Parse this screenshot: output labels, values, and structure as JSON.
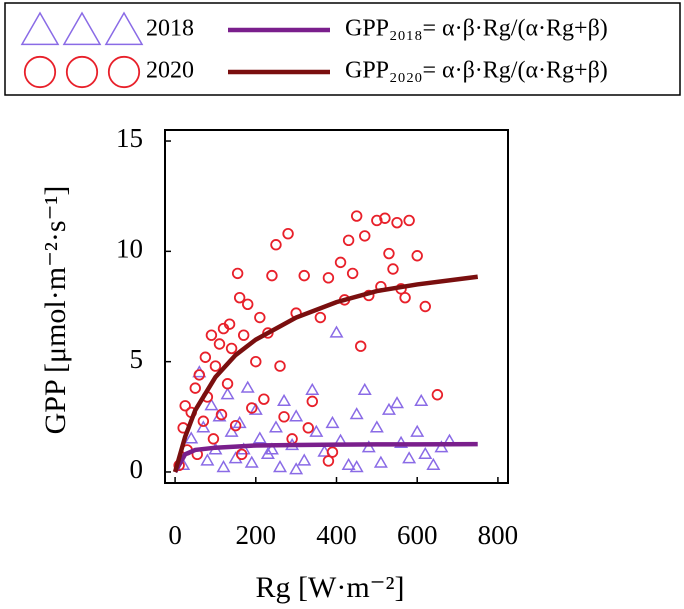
{
  "chart_data": {
    "type": "scatter",
    "x_label": "Rg [W·m⁻²]",
    "y_label": "GPP [μmol·m⁻²·s⁻¹]",
    "xlim": [
      -25,
      825
    ],
    "ylim": [
      -0.5,
      15.5
    ],
    "xticks": [
      0,
      200,
      400,
      600,
      800
    ],
    "yticks": [
      0,
      5,
      10,
      15
    ],
    "grid": false,
    "series": [
      {
        "name": "2018",
        "type": "scatter",
        "marker": "triangle",
        "color": "#8a6be6",
        "x": [
          20,
          40,
          60,
          70,
          80,
          90,
          100,
          110,
          120,
          130,
          140,
          150,
          160,
          170,
          180,
          190,
          200,
          210,
          230,
          250,
          260,
          270,
          290,
          300,
          320,
          340,
          350,
          370,
          390,
          400,
          410,
          430,
          450,
          470,
          480,
          500,
          510,
          530,
          550,
          560,
          580,
          600,
          610,
          620,
          640,
          660,
          680,
          300,
          450,
          240
        ],
        "values": [
          0.3,
          1.5,
          4.5,
          2.0,
          0.5,
          3.0,
          1.0,
          2.5,
          0.2,
          3.5,
          1.8,
          0.6,
          2.2,
          1.0,
          3.8,
          0.4,
          2.8,
          1.5,
          0.8,
          2.0,
          0.2,
          3.2,
          1.2,
          2.5,
          0.5,
          3.7,
          1.8,
          0.9,
          2.2,
          6.3,
          1.4,
          0.3,
          2.6,
          3.7,
          1.1,
          2.0,
          0.4,
          2.8,
          3.1,
          1.3,
          0.6,
          1.8,
          3.2,
          0.8,
          0.3,
          1.1,
          1.4,
          0.1,
          0.2,
          1.0
        ]
      },
      {
        "name": "2020",
        "type": "scatter",
        "marker": "circle",
        "color": "#e8202a",
        "x": [
          10,
          20,
          25,
          30,
          40,
          50,
          55,
          60,
          70,
          75,
          80,
          90,
          95,
          100,
          110,
          115,
          120,
          130,
          135,
          140,
          150,
          155,
          160,
          165,
          170,
          180,
          190,
          200,
          210,
          220,
          230,
          240,
          250,
          260,
          270,
          280,
          300,
          320,
          330,
          340,
          360,
          380,
          390,
          410,
          420,
          430,
          440,
          450,
          460,
          470,
          480,
          500,
          510,
          520,
          530,
          540,
          550,
          560,
          570,
          580,
          600,
          620,
          650,
          380,
          290
        ],
        "values": [
          0.3,
          2.0,
          3.0,
          1.0,
          2.7,
          3.8,
          0.8,
          4.4,
          2.3,
          5.2,
          3.4,
          6.2,
          1.5,
          4.8,
          5.8,
          2.6,
          6.5,
          4.0,
          6.7,
          5.6,
          2.1,
          9.0,
          7.9,
          0.8,
          6.2,
          7.6,
          2.9,
          5.0,
          7.0,
          3.3,
          6.3,
          8.9,
          10.3,
          4.8,
          2.5,
          10.8,
          7.2,
          8.9,
          2.0,
          3.2,
          7.0,
          8.8,
          0.9,
          9.5,
          7.8,
          10.5,
          9.0,
          11.6,
          5.7,
          10.7,
          8.0,
          11.4,
          8.4,
          11.5,
          9.9,
          9.2,
          11.3,
          8.3,
          7.9,
          11.4,
          9.8,
          7.5,
          3.5,
          0.5,
          1.5
        ]
      },
      {
        "name": "GPP₂₀₁₈= α·β·Rg/(α·Rg+β)",
        "type": "line",
        "color": "#7a1f8c",
        "x": [
          0,
          25,
          50,
          100,
          150,
          200,
          300,
          400,
          500,
          600,
          750
        ],
        "values": [
          0,
          0.8,
          1.0,
          1.1,
          1.15,
          1.2,
          1.22,
          1.24,
          1.25,
          1.25,
          1.26
        ]
      },
      {
        "name": "GPP₂₀₂₀= α·β·Rg/(α·Rg+β)",
        "type": "line",
        "color": "#7a0f0f",
        "x": [
          0,
          25,
          50,
          100,
          150,
          200,
          300,
          400,
          500,
          600,
          750
        ],
        "values": [
          0,
          1.6,
          2.8,
          4.3,
          5.3,
          6.0,
          7.0,
          7.7,
          8.2,
          8.5,
          8.85
        ]
      }
    ]
  }
}
